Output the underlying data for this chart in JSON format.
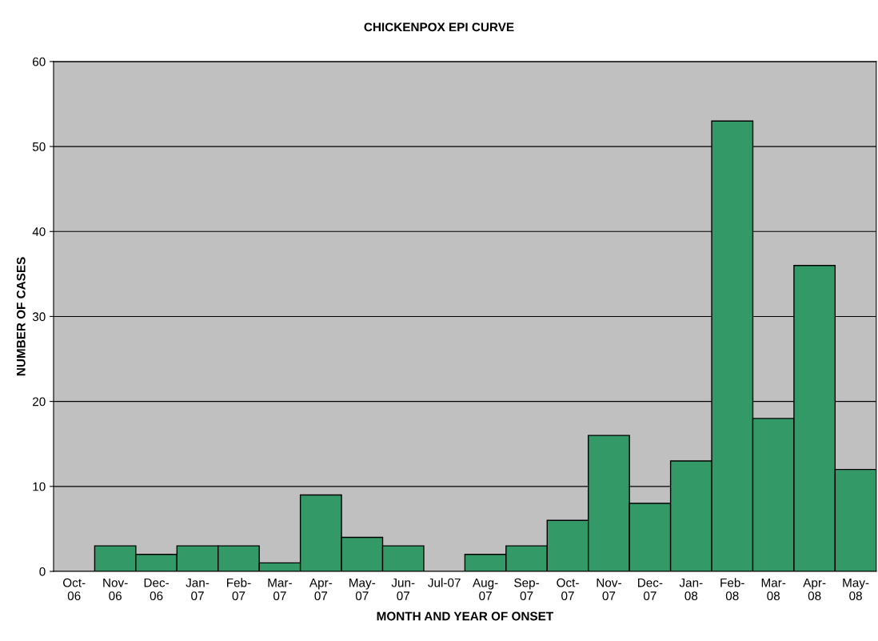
{
  "chart_data": {
    "type": "bar",
    "title": "CHICKENPOX EPI CURVE",
    "xlabel": "MONTH AND YEAR OF ONSET",
    "ylabel": "NUMBER OF CASES",
    "categories": [
      "Oct-\n06",
      "Nov-\n06",
      "Dec-\n06",
      "Jan-\n07",
      "Feb-\n07",
      "Mar-\n07",
      "Apr-\n07",
      "May-\n07",
      "Jun-\n07",
      "Jul-07",
      "Aug-\n07",
      "Sep-\n07",
      "Oct-\n07",
      "Nov-\n07",
      "Dec-\n07",
      "Jan-\n08",
      "Feb-\n08",
      "Mar-\n08",
      "Apr-\n08",
      "May-\n08"
    ],
    "values": [
      0,
      3,
      2,
      3,
      3,
      1,
      9,
      4,
      3,
      0,
      2,
      3,
      6,
      16,
      8,
      13,
      53,
      18,
      36,
      12
    ],
    "color": "#339966",
    "ylim": [
      0,
      60
    ],
    "yticks": [
      0,
      10,
      20,
      30,
      40,
      50,
      60
    ],
    "grid": "y",
    "legend": false
  }
}
